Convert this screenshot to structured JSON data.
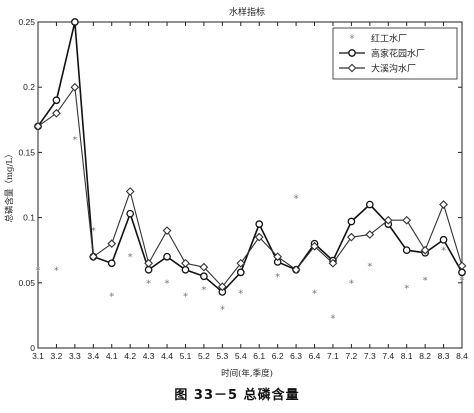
{
  "figure_caption": "图 33－5   总磷含量",
  "chart_data": {
    "type": "line",
    "title": "水样指标",
    "xlabel": "时间(年,季度)",
    "ylabel": "总磷含量（mg/L）",
    "categories": [
      "3.1",
      "3.2",
      "3.3",
      "3.4",
      "4.1",
      "4.2",
      "4.3",
      "4.4",
      "5.1",
      "5.2",
      "5.3",
      "5.4",
      "6.1",
      "6.2",
      "6.3",
      "6.4",
      "7.1",
      "7.2",
      "7.3",
      "7.4",
      "8.1",
      "8.2",
      "8.3",
      "8.4"
    ],
    "ylim": [
      0,
      0.25
    ],
    "yticks": [
      "0",
      "0.05",
      "0.1",
      "0.15",
      "0.2",
      "0.25"
    ],
    "grid": false,
    "legend_position": "top-right",
    "series": [
      {
        "name": "红工水厂",
        "marker": "star",
        "line": false,
        "color": "#777777",
        "values": [
          0.06,
          0.06,
          0.16,
          0.09,
          0.04,
          0.07,
          0.05,
          0.05,
          0.04,
          0.045,
          0.03,
          0.042,
          0.085,
          0.055,
          0.115,
          0.042,
          0.023,
          0.05,
          0.063,
          0.095,
          0.046,
          0.052,
          0.075,
          0.052
        ]
      },
      {
        "name": "高家花园水厂",
        "marker": "circle",
        "line": true,
        "color": "#111111",
        "values": [
          0.17,
          0.19,
          0.25,
          0.07,
          0.065,
          0.103,
          0.06,
          0.07,
          0.06,
          0.055,
          0.043,
          0.058,
          0.095,
          0.066,
          0.06,
          0.08,
          0.067,
          0.097,
          0.11,
          0.095,
          0.075,
          0.073,
          0.083,
          0.058
        ]
      },
      {
        "name": "大溪沟水厂",
        "marker": "diamond",
        "line": true,
        "color": "#333333",
        "values": [
          0.17,
          0.18,
          0.2,
          0.07,
          0.08,
          0.12,
          0.065,
          0.09,
          0.065,
          0.062,
          0.047,
          0.065,
          0.085,
          0.07,
          0.06,
          0.078,
          0.065,
          0.085,
          0.087,
          0.098,
          0.098,
          0.075,
          0.11,
          0.063
        ]
      }
    ]
  }
}
